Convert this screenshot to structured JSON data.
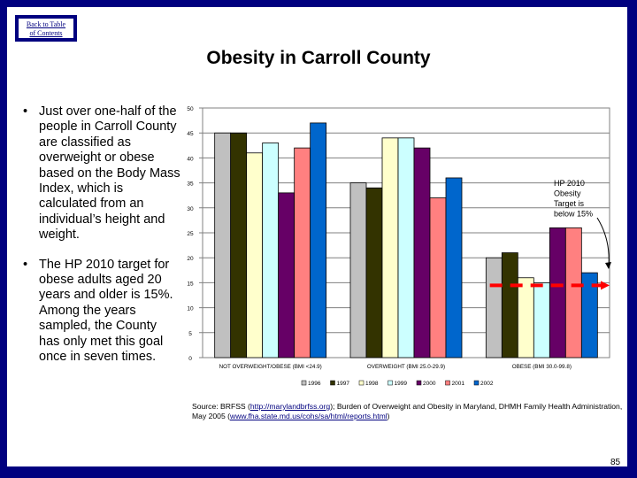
{
  "nav": {
    "back_label_line1": "Back to Table",
    "back_label_line2": "of Contents"
  },
  "title": "Obesity in Carroll County",
  "bullets": [
    "Just over one-half of the people in Carroll County are classified as overweight or obese based on the Body Mass Index, which is calculated from an individual’s height and weight.",
    "The HP 2010 target for obese adults aged 20 years and older is 15%.  Among the years sampled, the County has only met this goal once in seven times."
  ],
  "bullet_glyph": "•",
  "annotation": [
    "HP 2010",
    "Obesity",
    "Target is",
    "below 15%"
  ],
  "source": {
    "prefix": "Source: BRFSS (",
    "link1": "http://marylandbrfss.org",
    "middle": "); Burden of Overweight and Obesity in Maryland, DHMH Family Health Administration, May 2005 (",
    "link2": "www.fha.state.md.us/cohs/sa/html/reports.html",
    "suffix": ")"
  },
  "page_number": "85",
  "chart_data": {
    "type": "bar",
    "title": "",
    "xlabel": "",
    "ylabel": "",
    "ylim": [
      0,
      50
    ],
    "yticks": [
      0,
      5,
      10,
      15,
      20,
      25,
      30,
      35,
      40,
      45,
      50
    ],
    "grid": true,
    "legend_position": "bottom",
    "categories": [
      "NOT OVERWEIGHT/OBESE (BMI <24.9)",
      "OVERWEIGHT (BMI 25.0-29.9)",
      "OBESE (BMI 30.0-99.8)"
    ],
    "series": [
      {
        "name": "1996",
        "color": "#c0c0c0",
        "values": [
          45,
          35,
          20
        ]
      },
      {
        "name": "1997",
        "color": "#333300",
        "values": [
          45,
          34,
          21
        ]
      },
      {
        "name": "1998",
        "color": "#ffffcc",
        "values": [
          41,
          44,
          16
        ]
      },
      {
        "name": "1999",
        "color": "#ccffff",
        "values": [
          43,
          44,
          15
        ]
      },
      {
        "name": "2000",
        "color": "#660066",
        "values": [
          33,
          42,
          26
        ]
      },
      {
        "name": "2001",
        "color": "#ff8080",
        "values": [
          42,
          32,
          26
        ]
      },
      {
        "name": "2002",
        "color": "#0066cc",
        "values": [
          47,
          36,
          17
        ]
      }
    ],
    "target_line": {
      "value": 15,
      "color": "#ff0000",
      "style": "dashed-arrow",
      "applies_to": "OBESE (BMI 30.0-99.8)"
    }
  }
}
